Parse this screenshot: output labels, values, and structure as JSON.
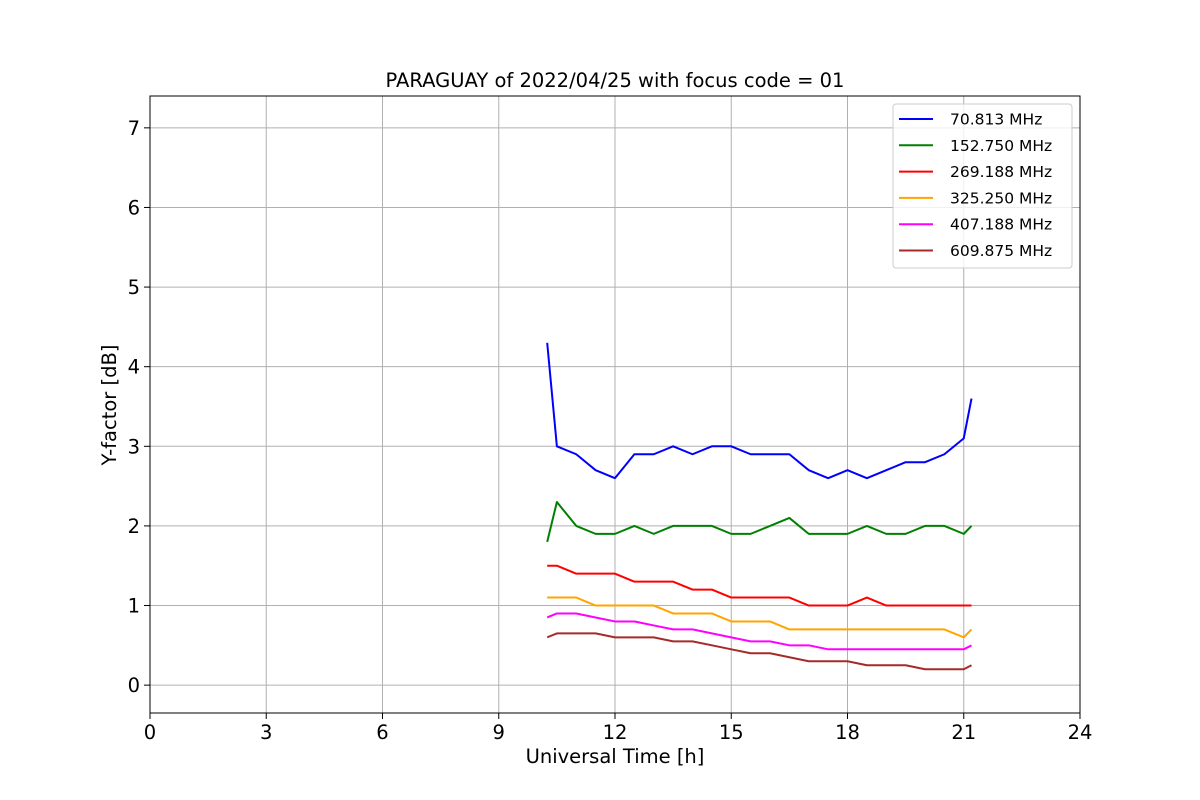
{
  "chart_data": {
    "type": "line",
    "title": "PARAGUAY of 2022/04/25 with focus code = 01",
    "xlabel": "Universal Time [h]",
    "ylabel": "Y-factor [dB]",
    "xlim": [
      0,
      24
    ],
    "ylim": [
      -0.35,
      7.4
    ],
    "xticks": [
      0,
      3,
      6,
      9,
      12,
      15,
      18,
      21,
      24
    ],
    "xtick_labels": [
      "0",
      "3",
      "6",
      "9",
      "12",
      "15",
      "18",
      "21",
      "24"
    ],
    "yticks": [
      0,
      1,
      2,
      3,
      4,
      5,
      6,
      7
    ],
    "ytick_labels": [
      "0",
      "1",
      "2",
      "3",
      "4",
      "5",
      "6",
      "7"
    ],
    "grid": true,
    "legend_position": "top-right",
    "x": [
      10.25,
      10.5,
      11,
      11.5,
      12,
      12.5,
      13,
      13.5,
      14,
      14.5,
      15,
      15.5,
      16,
      16.5,
      17,
      17.5,
      18,
      18.5,
      19,
      19.5,
      20,
      20.5,
      21,
      21.2
    ],
    "series": [
      {
        "name": " 70.813 MHz",
        "color": "#0000ff",
        "values": [
          4.3,
          3.0,
          2.9,
          2.7,
          2.6,
          2.9,
          2.9,
          3.0,
          2.9,
          3.0,
          3.0,
          2.9,
          2.9,
          2.9,
          2.7,
          2.6,
          2.7,
          2.6,
          2.7,
          2.8,
          2.8,
          2.9,
          3.1,
          3.6
        ]
      },
      {
        "name": "152.750 MHz",
        "color": "#008000",
        "values": [
          1.8,
          2.3,
          2.0,
          1.9,
          1.9,
          2.0,
          1.9,
          2.0,
          2.0,
          2.0,
          1.9,
          1.9,
          2.0,
          2.1,
          1.9,
          1.9,
          1.9,
          2.0,
          1.9,
          1.9,
          2.0,
          2.0,
          1.9,
          2.0
        ]
      },
      {
        "name": "269.188 MHz",
        "color": "#ff0000",
        "values": [
          1.5,
          1.5,
          1.4,
          1.4,
          1.4,
          1.3,
          1.3,
          1.3,
          1.2,
          1.2,
          1.1,
          1.1,
          1.1,
          1.1,
          1.0,
          1.0,
          1.0,
          1.1,
          1.0,
          1.0,
          1.0,
          1.0,
          1.0,
          1.0
        ]
      },
      {
        "name": "325.250 MHz",
        "color": "#ffa500",
        "values": [
          1.1,
          1.1,
          1.1,
          1.0,
          1.0,
          1.0,
          1.0,
          0.9,
          0.9,
          0.9,
          0.8,
          0.8,
          0.8,
          0.7,
          0.7,
          0.7,
          0.7,
          0.7,
          0.7,
          0.7,
          0.7,
          0.7,
          0.6,
          0.7
        ]
      },
      {
        "name": "407.188 MHz",
        "color": "#ff00ff",
        "values": [
          0.85,
          0.9,
          0.9,
          0.85,
          0.8,
          0.8,
          0.75,
          0.7,
          0.7,
          0.65,
          0.6,
          0.55,
          0.55,
          0.5,
          0.5,
          0.45,
          0.45,
          0.45,
          0.45,
          0.45,
          0.45,
          0.45,
          0.45,
          0.5
        ]
      },
      {
        "name": "609.875 MHz",
        "color": "#a52a2a",
        "values": [
          0.6,
          0.65,
          0.65,
          0.65,
          0.6,
          0.6,
          0.6,
          0.55,
          0.55,
          0.5,
          0.45,
          0.4,
          0.4,
          0.35,
          0.3,
          0.3,
          0.3,
          0.25,
          0.25,
          0.25,
          0.2,
          0.2,
          0.2,
          0.25
        ]
      }
    ]
  }
}
